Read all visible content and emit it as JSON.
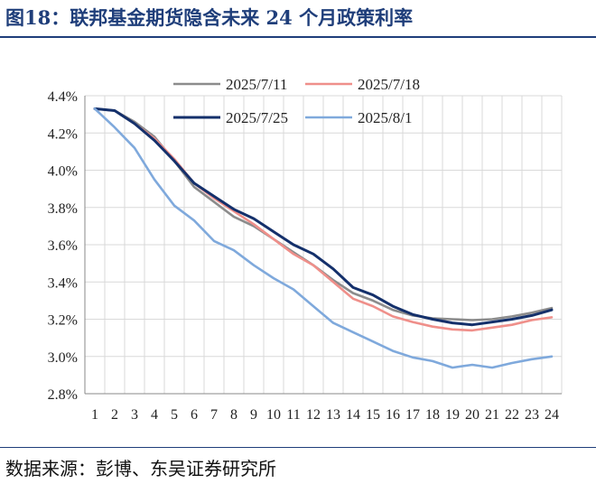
{
  "figure": {
    "title": "图18：联邦基金期货隐含未来 24 个月政策利率",
    "source": "数据来源：彭博、东吴证券研究所"
  },
  "chart_data": {
    "type": "line",
    "title": "",
    "xlabel": "",
    "ylabel": "",
    "x": [
      1,
      2,
      3,
      4,
      5,
      6,
      7,
      8,
      9,
      10,
      11,
      12,
      13,
      14,
      15,
      16,
      17,
      18,
      19,
      20,
      21,
      22,
      23,
      24
    ],
    "x_tick_labels": [
      "1",
      "2",
      "3",
      "4",
      "5",
      "6",
      "7",
      "8",
      "9",
      "10",
      "11",
      "12",
      "13",
      "14",
      "15",
      "16",
      "17",
      "18",
      "19",
      "20",
      "21",
      "22",
      "23",
      "24"
    ],
    "ylim": [
      2.8,
      4.4
    ],
    "y_ticks": [
      2.8,
      3.0,
      3.2,
      3.4,
      3.6,
      3.8,
      4.0,
      4.2,
      4.4
    ],
    "y_tick_labels": [
      "2.8%",
      "3.0%",
      "3.2%",
      "3.4%",
      "3.6%",
      "3.8%",
      "4.0%",
      "4.2%",
      "4.4%"
    ],
    "grid": "horizontal and vertical",
    "legend_position": "top",
    "series": [
      {
        "name": "2025/7/11",
        "color": "#8c8c8c",
        "values": [
          4.33,
          4.32,
          4.26,
          4.18,
          4.05,
          3.91,
          3.83,
          3.75,
          3.7,
          3.63,
          3.56,
          3.49,
          3.41,
          3.34,
          3.3,
          3.25,
          3.22,
          3.205,
          3.2,
          3.195,
          3.2,
          3.215,
          3.235,
          3.26
        ]
      },
      {
        "name": "2025/7/18",
        "color": "#ef8f8a",
        "values": [
          4.33,
          4.32,
          4.25,
          4.17,
          4.06,
          3.93,
          3.85,
          3.78,
          3.71,
          3.63,
          3.55,
          3.49,
          3.4,
          3.31,
          3.27,
          3.215,
          3.185,
          3.16,
          3.145,
          3.14,
          3.155,
          3.17,
          3.195,
          3.21
        ]
      },
      {
        "name": "2025/7/25",
        "color": "#14306b",
        "values": [
          4.33,
          4.32,
          4.25,
          4.16,
          4.05,
          3.93,
          3.86,
          3.79,
          3.74,
          3.67,
          3.6,
          3.55,
          3.47,
          3.37,
          3.33,
          3.27,
          3.225,
          3.2,
          3.18,
          3.17,
          3.185,
          3.2,
          3.22,
          3.25
        ]
      },
      {
        "name": "2025/8/1",
        "color": "#7fa9dc",
        "values": [
          4.33,
          4.23,
          4.12,
          3.95,
          3.81,
          3.73,
          3.62,
          3.57,
          3.49,
          3.42,
          3.36,
          3.27,
          3.18,
          3.13,
          3.08,
          3.03,
          2.995,
          2.975,
          2.94,
          2.955,
          2.94,
          2.965,
          2.985,
          3.0
        ]
      }
    ]
  }
}
